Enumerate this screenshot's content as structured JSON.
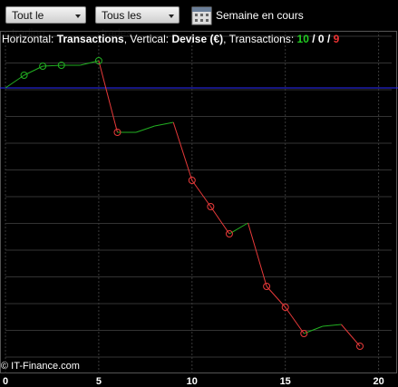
{
  "toolbar": {
    "buttons": [
      "Tout le trading",
      "Tous les trades"
    ],
    "period": "Semaine en cours"
  },
  "header": {
    "h_label": "Horizontal:",
    "h_value": "Transactions",
    "v_label": ", Vertical:",
    "v_value": "Devise (€)",
    "t_label": ", Transactions:",
    "wins": "10",
    "sep1": "/",
    "flat": "0",
    "sep2": "/",
    "losses": "9"
  },
  "chart_data": {
    "type": "line",
    "x": [
      0,
      1,
      2,
      3,
      4,
      5,
      6,
      7,
      8,
      9,
      10,
      11,
      12,
      13,
      14,
      15,
      16,
      17,
      18,
      19
    ],
    "values": [
      0,
      1.4,
      2.4,
      2.5,
      2.5,
      3.0,
      -4.9,
      -4.9,
      -4.2,
      -3.8,
      -10.2,
      -13.1,
      -16.1,
      -14.9,
      -21.9,
      -24.2,
      -27.1,
      -26.3,
      -26.1,
      -28.5
    ],
    "marker_x": [
      1,
      2,
      3,
      5,
      6,
      10,
      11,
      12,
      14,
      15,
      16,
      19
    ],
    "up_color": "#22b022",
    "down_color": "#e83a3a",
    "baseline_color": "#2a2aff",
    "xlim": [
      0,
      20.7
    ],
    "ylim": [
      -31.3,
      4.7
    ],
    "xticks": [
      0,
      5,
      10,
      15,
      20
    ],
    "grid": true,
    "copyright": "© IT-Finance.com"
  }
}
